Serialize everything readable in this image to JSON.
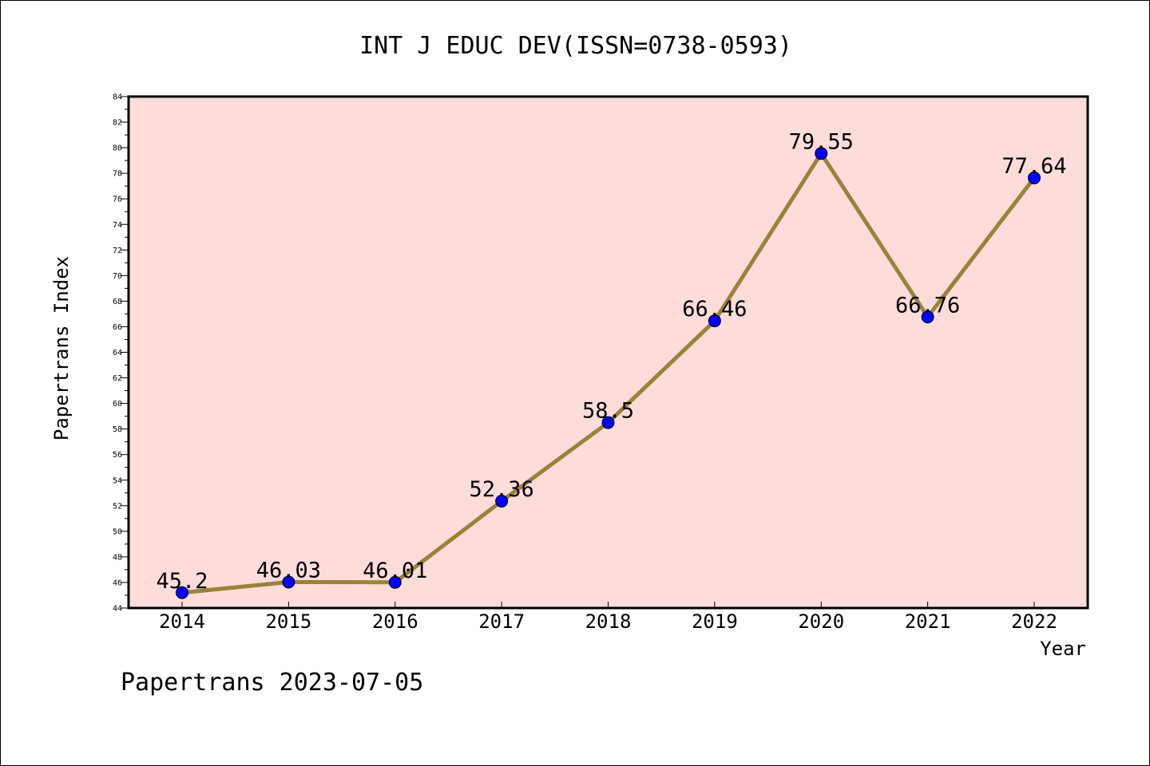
{
  "chart_data": {
    "type": "line",
    "title": "INT J EDUC DEV(ISSN=0738-0593)",
    "xlabel": "Year",
    "ylabel": "Papertrans Index",
    "categories": [
      "2014",
      "2015",
      "2016",
      "2017",
      "2018",
      "2019",
      "2020",
      "2021",
      "2022"
    ],
    "series": [
      {
        "values": [
          45.2,
          46.03,
          46.01,
          52.36,
          58.5,
          66.46,
          79.55,
          66.76,
          77.64
        ],
        "labels": [
          "45.2",
          "46.03",
          "46.01",
          "52.36",
          "58.5",
          "66.46",
          "79.55",
          "66.76",
          "77.64"
        ]
      }
    ],
    "ylim": [
      44,
      84
    ],
    "yticks": [
      "44",
      "46",
      "48",
      "50",
      "52",
      "54",
      "56",
      "58",
      "60",
      "62",
      "64",
      "66",
      "68",
      "70",
      "72",
      "74",
      "76",
      "78",
      "80",
      "82",
      "84"
    ],
    "grid": false,
    "colors": {
      "plot_background": "#FDDCDA",
      "line": "#9A8238",
      "marker": "#0000FF"
    }
  },
  "footer": "Papertrans 2023-07-05"
}
